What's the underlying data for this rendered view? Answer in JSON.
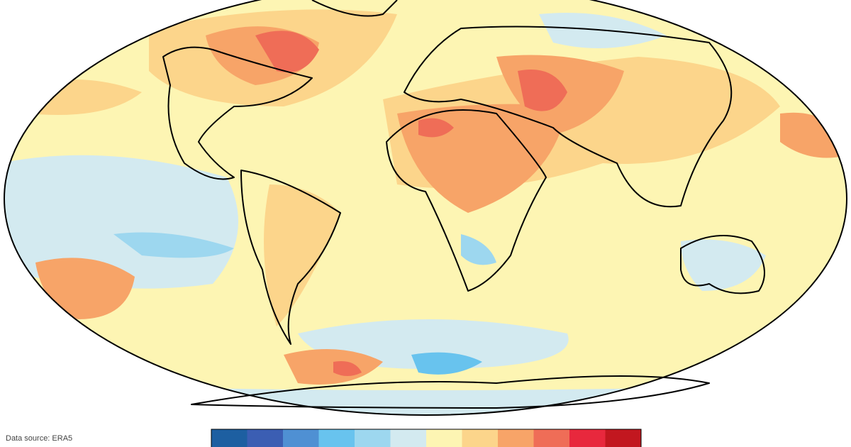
{
  "source": "Data source: ERA5",
  "colorbar": {
    "colors": [
      "#1d5fa1",
      "#3b5eb3",
      "#4f90d3",
      "#68c3ee",
      "#9dd7ef",
      "#d3eaf0",
      "#fdf5b3",
      "#fcd58b",
      "#f7a468",
      "#ef6d57",
      "#e8283d",
      "#c2171f"
    ]
  }
}
